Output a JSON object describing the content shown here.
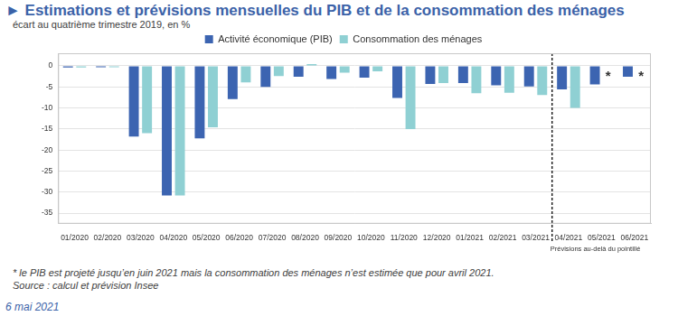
{
  "chart_data": {
    "type": "bar",
    "title": "► Estimations et prévisions mensuelles du PIB et de la consommation des ménages",
    "subtitle": "écart au quatrième trimestre 2019, en %",
    "categories": [
      "01/2020",
      "02/2020",
      "03/2020",
      "04/2020",
      "05/2020",
      "06/2020",
      "07/2020",
      "08/2020",
      "09/2020",
      "10/2020",
      "11/2020",
      "12/2020",
      "01/2021",
      "02/2021",
      "03/2021",
      "04/2021",
      "05/2021",
      "06/2021"
    ],
    "series": [
      {
        "name": "Activité économique (PIB)",
        "color": "#3c64b1",
        "values": [
          -0.4,
          -0.3,
          -16.8,
          -30.8,
          -17.2,
          -7.9,
          -5.0,
          -2.6,
          -3.1,
          -2.8,
          -7.6,
          -4.3,
          -4.1,
          -4.6,
          -4.9,
          -5.6,
          -4.4,
          -2.6
        ]
      },
      {
        "name": "Consommation des ménages",
        "color": "#8fd0d3",
        "values": [
          -0.4,
          -0.3,
          -16.0,
          -30.8,
          -14.6,
          -3.9,
          -2.4,
          0.4,
          -1.6,
          -1.3,
          -15.0,
          -4.1,
          -6.5,
          -6.4,
          -6.9,
          -10.0,
          null,
          null
        ]
      }
    ],
    "ylim": [
      -37.5,
      3
    ],
    "yticks": [
      -35,
      -30,
      -25,
      -20,
      -15,
      -10,
      -5,
      0
    ],
    "grid": true,
    "legend": "top",
    "annotations": [
      {
        "text": "*",
        "category": "05/2021",
        "series": "Consommation des ménages"
      },
      {
        "text": "*",
        "category": "06/2021",
        "series": "Consommation des ménages"
      },
      {
        "text": "Prévisions au-delà du pointillé",
        "after": "03/2021"
      }
    ]
  },
  "footnote": "* le PIB est projeté jusqu’en juin 2021 mais la consommation des ménages n’est estimée que pour avril 2021.",
  "source": "Source : calcul et prévision Insee",
  "date": "6 mai 2021"
}
